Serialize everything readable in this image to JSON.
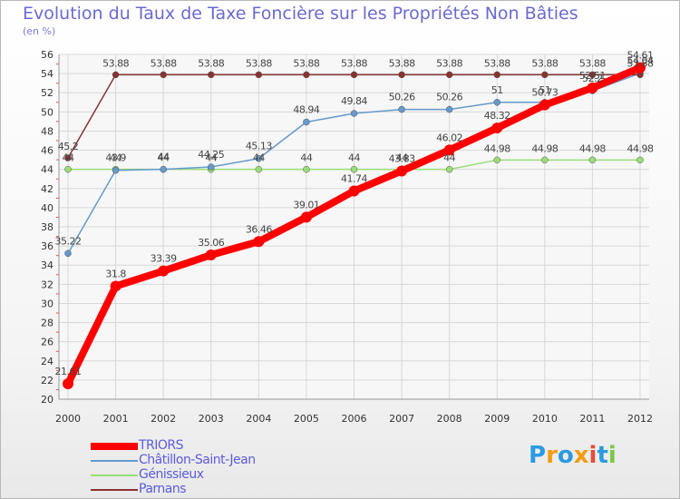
{
  "chart_data": {
    "type": "line",
    "title": "Evolution du Taux de Taxe Foncière sur les Propriétés Non Bâties",
    "ylabel": "(en %)",
    "xlabel": "",
    "x": [
      "2000",
      "2001",
      "2002",
      "2003",
      "2004",
      "2005",
      "2006",
      "2007",
      "2008",
      "2009",
      "2010",
      "2011",
      "2012"
    ],
    "ylim": [
      20,
      56
    ],
    "yticks": [
      20,
      22,
      24,
      26,
      28,
      30,
      32,
      34,
      36,
      38,
      40,
      42,
      44,
      46,
      48,
      50,
      52,
      54,
      56
    ],
    "grid": true,
    "legend_position": "bottom-left",
    "series": [
      {
        "name": "TRIORS",
        "color": "#ff0000",
        "values": [
          21.61,
          31.8,
          33.39,
          35.06,
          36.46,
          39.01,
          41.74,
          43.83,
          46.02,
          48.32,
          50.73,
          52.51,
          54.61
        ],
        "labels": [
          "21.61",
          "31.8",
          "33.39",
          "35.06",
          "36.46",
          "39.01",
          "41.74",
          "43.83",
          "46.02",
          "48.32",
          "50.73",
          "52.51",
          "54.61"
        ]
      },
      {
        "name": "Châtillon-Saint-Jean",
        "color": "#6699cc",
        "values": [
          35.22,
          43.9,
          44,
          44.25,
          45.13,
          48.94,
          49.84,
          50.26,
          50.26,
          51,
          51,
          52.2,
          54.04
        ],
        "labels": [
          "35.22",
          "43.9",
          "44",
          "44.25",
          "45.13",
          "48.94",
          "49.84",
          "50.26",
          "50.26",
          "51",
          "51",
          "52.2",
          "54.04"
        ]
      },
      {
        "name": "Génissieux",
        "color": "#99dd77",
        "values": [
          44,
          44,
          44,
          44,
          44,
          44,
          44,
          44,
          44,
          44.98,
          44.98,
          44.98,
          44.98
        ],
        "labels": [
          "44",
          "44",
          "44",
          "44",
          "44",
          "44",
          "44",
          "44",
          "44",
          "44.98",
          "44.98",
          "44.98",
          "44.98"
        ]
      },
      {
        "name": "Parnans",
        "color": "#883333",
        "values": [
          45.2,
          53.88,
          53.88,
          53.88,
          53.88,
          53.88,
          53.88,
          53.88,
          53.88,
          53.88,
          53.88,
          53.88,
          53.88
        ],
        "labels": [
          "45.2",
          "53.88",
          "53.88",
          "53.88",
          "53.88",
          "53.88",
          "53.88",
          "53.88",
          "53.88",
          "53.88",
          "53.88",
          "53.88",
          "53.88"
        ]
      }
    ]
  },
  "legend": {
    "items": [
      {
        "label": "TRIORS",
        "color": "#ff0000"
      },
      {
        "label": "Châtillon-Saint-Jean",
        "color": "#6699cc"
      },
      {
        "label": "Génissieux",
        "color": "#99dd77"
      },
      {
        "label": "Parnans",
        "color": "#883333"
      }
    ]
  },
  "brand": {
    "letters": [
      "P",
      "r",
      "o",
      "x",
      "i",
      "t",
      "i"
    ],
    "colors": [
      "#2b9be0",
      "#f39c12",
      "#2b9be0",
      "#f39c12",
      "#e74c3c",
      "#2b9be0",
      "#7ac943"
    ]
  }
}
